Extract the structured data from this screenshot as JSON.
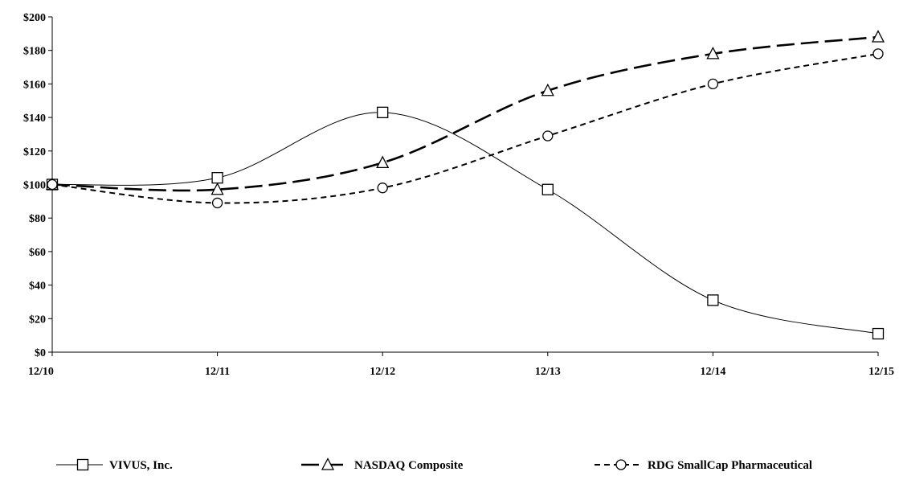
{
  "chart_data": {
    "type": "line",
    "title": "",
    "xlabel": "",
    "ylabel": "",
    "categories": [
      "12/10",
      "12/11",
      "12/12",
      "12/13",
      "12/14",
      "12/15"
    ],
    "ylim": [
      0,
      200
    ],
    "yticks": [
      "$0",
      "$20",
      "$40",
      "$60",
      "$80",
      "$100",
      "$120",
      "$140",
      "$160",
      "$180",
      "$200"
    ],
    "grid": false,
    "legend_position": "bottom",
    "series": [
      {
        "name": "VIVUS, Inc.",
        "values": [
          100,
          104,
          143,
          97,
          31,
          11
        ],
        "marker": "square",
        "dash": "solid",
        "stroke_width": 1
      },
      {
        "name": "NASDAQ Composite",
        "values": [
          100,
          97,
          113,
          156,
          178,
          188
        ],
        "marker": "triangle",
        "dash": "long-dash",
        "stroke_width": 2.6
      },
      {
        "name": "RDG SmallCap Pharmaceutical",
        "values": [
          100,
          89,
          98,
          129,
          160,
          178
        ],
        "marker": "circle",
        "dash": "short-dash",
        "stroke_width": 2
      }
    ],
    "colors": {
      "line": "#000000",
      "marker_fill": "#ffffff"
    }
  }
}
